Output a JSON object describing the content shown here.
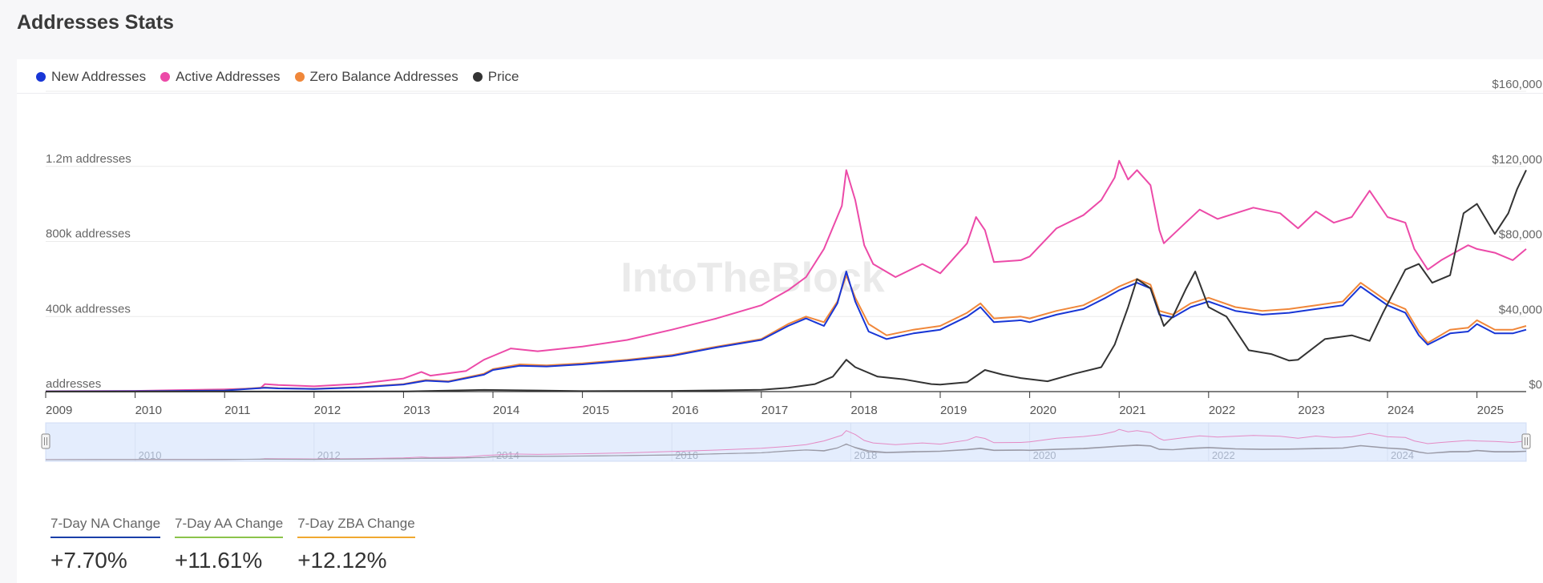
{
  "header": {
    "title": "Addresses Stats"
  },
  "legend": [
    {
      "label": "New Addresses",
      "color": "#1836d6"
    },
    {
      "label": "Active Addresses",
      "color": "#ec4aa8"
    },
    {
      "label": "Zero Balance Addresses",
      "color": "#f0873a"
    },
    {
      "label": "Price",
      "color": "#333333"
    }
  ],
  "watermark": "IntoTheBlock",
  "stats": [
    {
      "label": "7-Day NA Change",
      "value": "+7.70%",
      "color": "#1a3fa8"
    },
    {
      "label": "7-Day AA Change",
      "value": "+11.61%",
      "color": "#8bc34a"
    },
    {
      "label": "7-Day ZBA Change",
      "value": "+12.12%",
      "color": "#f0a830"
    }
  ],
  "chart_data": {
    "type": "line",
    "x_ticks": [
      "2009",
      "2010",
      "2011",
      "2012",
      "2013",
      "2014",
      "2015",
      "2016",
      "2017",
      "2018",
      "2019",
      "2020",
      "2021",
      "2022",
      "2023",
      "2024",
      "2025"
    ],
    "navigator_ticks": [
      "2010",
      "2012",
      "2014",
      "2016",
      "2018",
      "2020",
      "2022",
      "2024"
    ],
    "y_left": {
      "ticks": [
        0,
        400000,
        800000,
        1200000
      ],
      "tick_labels": [
        "addresses",
        "400k addresses",
        "800k addresses",
        "1.2m addresses"
      ],
      "range": [
        0,
        1600000
      ]
    },
    "y_right": {
      "ticks": [
        0,
        40000,
        80000,
        120000,
        160000
      ],
      "tick_labels": [
        "$0",
        "$40,000",
        "$80,000",
        "$120,000",
        "$160,000"
      ],
      "range": [
        0,
        160000
      ]
    },
    "x_range": [
      2009.0,
      2025.55
    ],
    "grid": true,
    "legend_position": "top-left",
    "series": [
      {
        "name": "Active Addresses",
        "axis": "left",
        "color": "#ec4aa8",
        "points": [
          [
            2009.0,
            2000
          ],
          [
            2010.0,
            4000
          ],
          [
            2010.5,
            8000
          ],
          [
            2011.0,
            12000
          ],
          [
            2011.4,
            18000
          ],
          [
            2011.45,
            40000
          ],
          [
            2011.6,
            35000
          ],
          [
            2012.0,
            28000
          ],
          [
            2012.5,
            42000
          ],
          [
            2013.0,
            70000
          ],
          [
            2013.2,
            105000
          ],
          [
            2013.3,
            85000
          ],
          [
            2013.7,
            110000
          ],
          [
            2013.9,
            170000
          ],
          [
            2014.0,
            190000
          ],
          [
            2014.2,
            230000
          ],
          [
            2014.5,
            215000
          ],
          [
            2015.0,
            240000
          ],
          [
            2015.5,
            275000
          ],
          [
            2016.0,
            330000
          ],
          [
            2016.5,
            390000
          ],
          [
            2017.0,
            460000
          ],
          [
            2017.3,
            540000
          ],
          [
            2017.5,
            610000
          ],
          [
            2017.7,
            760000
          ],
          [
            2017.9,
            990000
          ],
          [
            2017.95,
            1180000
          ],
          [
            2018.05,
            1020000
          ],
          [
            2018.15,
            780000
          ],
          [
            2018.25,
            680000
          ],
          [
            2018.5,
            610000
          ],
          [
            2018.8,
            680000
          ],
          [
            2019.0,
            630000
          ],
          [
            2019.3,
            790000
          ],
          [
            2019.4,
            930000
          ],
          [
            2019.5,
            860000
          ],
          [
            2019.6,
            690000
          ],
          [
            2019.9,
            700000
          ],
          [
            2020.0,
            720000
          ],
          [
            2020.3,
            870000
          ],
          [
            2020.6,
            940000
          ],
          [
            2020.8,
            1020000
          ],
          [
            2020.95,
            1140000
          ],
          [
            2021.0,
            1230000
          ],
          [
            2021.1,
            1130000
          ],
          [
            2021.2,
            1180000
          ],
          [
            2021.35,
            1100000
          ],
          [
            2021.45,
            860000
          ],
          [
            2021.5,
            790000
          ],
          [
            2021.7,
            880000
          ],
          [
            2021.9,
            970000
          ],
          [
            2022.1,
            920000
          ],
          [
            2022.5,
            980000
          ],
          [
            2022.8,
            950000
          ],
          [
            2023.0,
            870000
          ],
          [
            2023.2,
            960000
          ],
          [
            2023.4,
            900000
          ],
          [
            2023.6,
            930000
          ],
          [
            2023.8,
            1070000
          ],
          [
            2024.0,
            930000
          ],
          [
            2024.2,
            900000
          ],
          [
            2024.3,
            760000
          ],
          [
            2024.45,
            650000
          ],
          [
            2024.6,
            700000
          ],
          [
            2024.9,
            780000
          ],
          [
            2025.0,
            760000
          ],
          [
            2025.2,
            740000
          ],
          [
            2025.4,
            700000
          ],
          [
            2025.55,
            760000
          ]
        ]
      },
      {
        "name": "Zero Balance Addresses",
        "axis": "left",
        "color": "#f0873a",
        "points": [
          [
            2009.0,
            1000
          ],
          [
            2010.0,
            2000
          ],
          [
            2010.5,
            4000
          ],
          [
            2011.0,
            7000
          ],
          [
            2011.45,
            22000
          ],
          [
            2011.6,
            18000
          ],
          [
            2012.0,
            15000
          ],
          [
            2012.5,
            24000
          ],
          [
            2013.0,
            40000
          ],
          [
            2013.25,
            62000
          ],
          [
            2013.5,
            55000
          ],
          [
            2013.9,
            95000
          ],
          [
            2014.0,
            120000
          ],
          [
            2014.3,
            145000
          ],
          [
            2014.6,
            140000
          ],
          [
            2015.0,
            150000
          ],
          [
            2015.5,
            170000
          ],
          [
            2016.0,
            195000
          ],
          [
            2016.5,
            240000
          ],
          [
            2017.0,
            280000
          ],
          [
            2017.3,
            360000
          ],
          [
            2017.5,
            400000
          ],
          [
            2017.7,
            370000
          ],
          [
            2017.85,
            480000
          ],
          [
            2017.95,
            620000
          ],
          [
            2018.05,
            500000
          ],
          [
            2018.2,
            360000
          ],
          [
            2018.4,
            300000
          ],
          [
            2018.7,
            330000
          ],
          [
            2019.0,
            350000
          ],
          [
            2019.3,
            420000
          ],
          [
            2019.45,
            470000
          ],
          [
            2019.6,
            390000
          ],
          [
            2019.9,
            400000
          ],
          [
            2020.0,
            390000
          ],
          [
            2020.3,
            430000
          ],
          [
            2020.6,
            460000
          ],
          [
            2020.85,
            520000
          ],
          [
            2021.0,
            560000
          ],
          [
            2021.2,
            600000
          ],
          [
            2021.35,
            570000
          ],
          [
            2021.45,
            430000
          ],
          [
            2021.6,
            410000
          ],
          [
            2021.8,
            470000
          ],
          [
            2022.0,
            500000
          ],
          [
            2022.3,
            450000
          ],
          [
            2022.6,
            430000
          ],
          [
            2022.9,
            440000
          ],
          [
            2023.2,
            460000
          ],
          [
            2023.5,
            480000
          ],
          [
            2023.7,
            580000
          ],
          [
            2023.85,
            530000
          ],
          [
            2024.0,
            480000
          ],
          [
            2024.2,
            440000
          ],
          [
            2024.35,
            320000
          ],
          [
            2024.45,
            260000
          ],
          [
            2024.7,
            330000
          ],
          [
            2024.9,
            340000
          ],
          [
            2025.0,
            380000
          ],
          [
            2025.2,
            330000
          ],
          [
            2025.4,
            330000
          ],
          [
            2025.55,
            350000
          ]
        ]
      },
      {
        "name": "New Addresses",
        "axis": "left",
        "color": "#1836d6",
        "points": [
          [
            2009.0,
            1000
          ],
          [
            2010.0,
            2000
          ],
          [
            2010.5,
            4000
          ],
          [
            2011.0,
            6000
          ],
          [
            2011.45,
            20000
          ],
          [
            2011.6,
            17000
          ],
          [
            2012.0,
            14000
          ],
          [
            2012.5,
            22000
          ],
          [
            2013.0,
            38000
          ],
          [
            2013.25,
            58000
          ],
          [
            2013.5,
            52000
          ],
          [
            2013.9,
            90000
          ],
          [
            2014.0,
            115000
          ],
          [
            2014.3,
            138000
          ],
          [
            2014.6,
            134000
          ],
          [
            2015.0,
            145000
          ],
          [
            2015.5,
            165000
          ],
          [
            2016.0,
            190000
          ],
          [
            2016.5,
            235000
          ],
          [
            2017.0,
            275000
          ],
          [
            2017.3,
            350000
          ],
          [
            2017.5,
            390000
          ],
          [
            2017.7,
            350000
          ],
          [
            2017.85,
            470000
          ],
          [
            2017.95,
            640000
          ],
          [
            2018.05,
            480000
          ],
          [
            2018.2,
            320000
          ],
          [
            2018.4,
            280000
          ],
          [
            2018.7,
            310000
          ],
          [
            2019.0,
            330000
          ],
          [
            2019.3,
            400000
          ],
          [
            2019.45,
            450000
          ],
          [
            2019.6,
            370000
          ],
          [
            2019.9,
            380000
          ],
          [
            2020.0,
            370000
          ],
          [
            2020.3,
            410000
          ],
          [
            2020.6,
            440000
          ],
          [
            2020.85,
            500000
          ],
          [
            2021.0,
            540000
          ],
          [
            2021.2,
            580000
          ],
          [
            2021.35,
            550000
          ],
          [
            2021.45,
            410000
          ],
          [
            2021.6,
            395000
          ],
          [
            2021.8,
            450000
          ],
          [
            2022.0,
            480000
          ],
          [
            2022.3,
            430000
          ],
          [
            2022.6,
            410000
          ],
          [
            2022.9,
            420000
          ],
          [
            2023.2,
            440000
          ],
          [
            2023.5,
            460000
          ],
          [
            2023.7,
            560000
          ],
          [
            2023.85,
            510000
          ],
          [
            2024.0,
            460000
          ],
          [
            2024.2,
            420000
          ],
          [
            2024.35,
            300000
          ],
          [
            2024.45,
            250000
          ],
          [
            2024.7,
            310000
          ],
          [
            2024.9,
            320000
          ],
          [
            2025.0,
            360000
          ],
          [
            2025.2,
            310000
          ],
          [
            2025.4,
            310000
          ],
          [
            2025.55,
            330000
          ]
        ]
      },
      {
        "name": "Price",
        "axis": "right",
        "color": "#333333",
        "points": [
          [
            2009.0,
            0
          ],
          [
            2013.0,
            100
          ],
          [
            2013.9,
            900
          ],
          [
            2014.5,
            600
          ],
          [
            2015.0,
            250
          ],
          [
            2016.0,
            400
          ],
          [
            2016.5,
            650
          ],
          [
            2017.0,
            1000
          ],
          [
            2017.3,
            2000
          ],
          [
            2017.6,
            4000
          ],
          [
            2017.8,
            8000
          ],
          [
            2017.95,
            17000
          ],
          [
            2018.05,
            13000
          ],
          [
            2018.3,
            8000
          ],
          [
            2018.6,
            6500
          ],
          [
            2018.9,
            4000
          ],
          [
            2019.0,
            3700
          ],
          [
            2019.3,
            5000
          ],
          [
            2019.5,
            11500
          ],
          [
            2019.7,
            9000
          ],
          [
            2019.9,
            7200
          ],
          [
            2020.2,
            5500
          ],
          [
            2020.5,
            9500
          ],
          [
            2020.8,
            13000
          ],
          [
            2020.95,
            25000
          ],
          [
            2021.1,
            45000
          ],
          [
            2021.2,
            60000
          ],
          [
            2021.35,
            55000
          ],
          [
            2021.5,
            35000
          ],
          [
            2021.6,
            40000
          ],
          [
            2021.75,
            55000
          ],
          [
            2021.85,
            64000
          ],
          [
            2022.0,
            45000
          ],
          [
            2022.2,
            40000
          ],
          [
            2022.45,
            22000
          ],
          [
            2022.7,
            20000
          ],
          [
            2022.9,
            16500
          ],
          [
            2023.0,
            17000
          ],
          [
            2023.3,
            28000
          ],
          [
            2023.6,
            30000
          ],
          [
            2023.8,
            27000
          ],
          [
            2023.95,
            42000
          ],
          [
            2024.2,
            65000
          ],
          [
            2024.35,
            68000
          ],
          [
            2024.5,
            58000
          ],
          [
            2024.7,
            62000
          ],
          [
            2024.85,
            95000
          ],
          [
            2025.0,
            100000
          ],
          [
            2025.2,
            84000
          ],
          [
            2025.35,
            95000
          ],
          [
            2025.45,
            108000
          ],
          [
            2025.55,
            118000
          ]
        ]
      }
    ]
  }
}
